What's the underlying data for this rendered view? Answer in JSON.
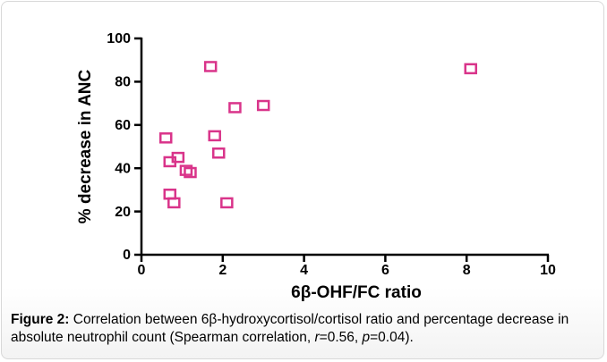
{
  "chart_data": {
    "type": "scatter",
    "x_label": "6β-OHF/FC ratio",
    "y_label": "% decrease in ANC",
    "color": "#d9348a",
    "x": [
      1.7,
      8.1,
      2.3,
      3.0,
      0.6,
      1.8,
      1.9,
      0.9,
      0.7,
      1.1,
      1.2,
      0.7,
      0.8,
      2.1
    ],
    "values": [
      87,
      86,
      68,
      69,
      54,
      55,
      47,
      45,
      43,
      39,
      38,
      28,
      24,
      24
    ],
    "xlim": [
      0,
      10
    ],
    "xticks": [
      0,
      2,
      4,
      6,
      8,
      10
    ],
    "ylim": [
      0,
      100
    ],
    "yticks": [
      0,
      20,
      40,
      60,
      80,
      100
    ]
  },
  "caption": {
    "label": "Figure 2:",
    "text1": " Correlation between 6β-hydroxycortisol/cortisol ratio and percentage decrease in absolute neutrophil count (Spearman correlation, ",
    "r": "r",
    "text2": "=0.56, ",
    "p": "p",
    "text3": "=0.04)."
  }
}
